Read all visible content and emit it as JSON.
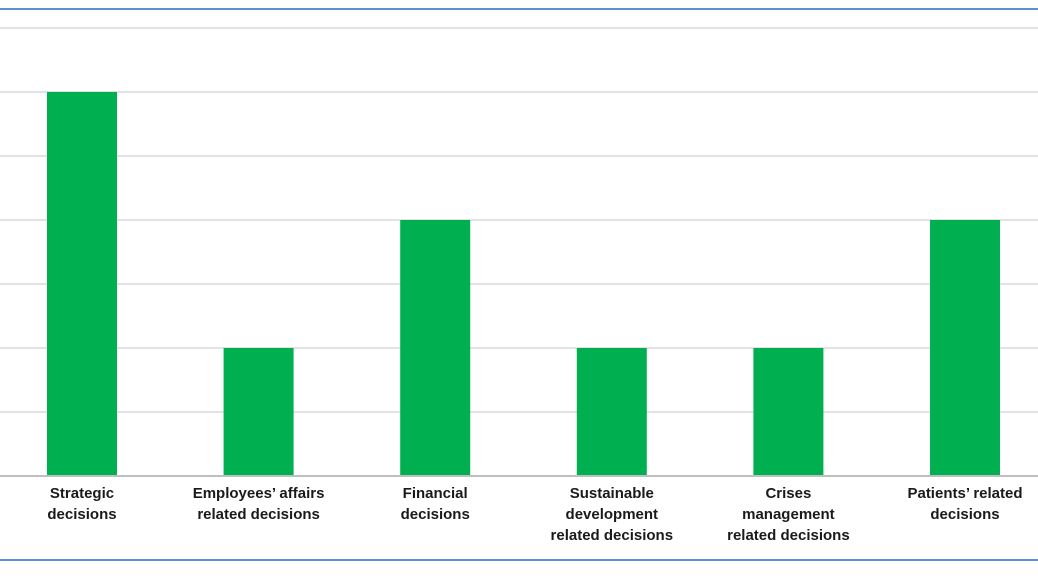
{
  "chart_data": {
    "type": "bar",
    "categories": [
      [
        "Strategic",
        "decisions"
      ],
      [
        "Employees’ affairs",
        "related decisions"
      ],
      [
        "Financial",
        "decisions"
      ],
      [
        "Sustainable",
        "development",
        "related decisions"
      ],
      [
        "Crises",
        "management",
        "related decisions"
      ],
      [
        "Patients’ related",
        "decisions"
      ]
    ],
    "values": [
      6,
      2,
      4,
      2,
      2,
      4
    ],
    "ylim": [
      0,
      7
    ],
    "ytick_step": 1,
    "grid": true,
    "bar_color": "#00b050",
    "gridline_color": "#d9d9d9",
    "axis_color": "#bfbfbf",
    "border_color": "#5b8fd6",
    "label_color": "#1a1a1a"
  }
}
